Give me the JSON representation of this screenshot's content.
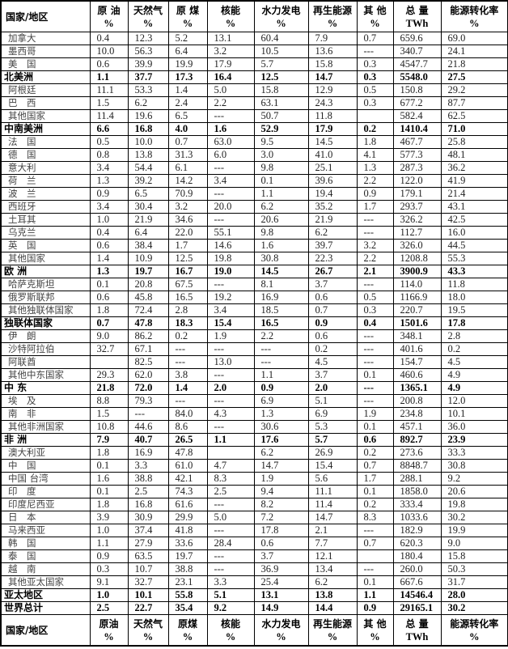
{
  "headers": [
    {
      "label": "国家/地区",
      "unit": ""
    },
    {
      "label": "原 油",
      "unit": "%"
    },
    {
      "label": "天然气",
      "unit": "%"
    },
    {
      "label": "原 煤",
      "unit": "%"
    },
    {
      "label": "核能",
      "unit": "%"
    },
    {
      "label": "水力发电",
      "unit": "%"
    },
    {
      "label": "再生能源",
      "unit": "%"
    },
    {
      "label": "其 他",
      "unit": "%"
    },
    {
      "label": "总 量",
      "unit": "TWh"
    },
    {
      "label": "能源转化率",
      "unit": "%"
    }
  ],
  "footer_headers": [
    {
      "label": "国家/地区",
      "unit": ""
    },
    {
      "label": "原油",
      "unit": "%"
    },
    {
      "label": "天然气",
      "unit": "%"
    },
    {
      "label": "原煤",
      "unit": "%"
    },
    {
      "label": "核能",
      "unit": "%"
    },
    {
      "label": "水力发电",
      "unit": "%"
    },
    {
      "label": "再生能源",
      "unit": "%"
    },
    {
      "label": "其 他",
      "unit": "%"
    },
    {
      "label": "总 量",
      "unit": "TWh"
    },
    {
      "label": "能源转化率",
      "unit": "%"
    }
  ],
  "rows": [
    {
      "name": "加拿大",
      "bold": false,
      "values": [
        "0.4",
        "12.3",
        "5.2",
        "13.1",
        "60.4",
        "7.9",
        "0.7",
        "659.6",
        "69.0"
      ]
    },
    {
      "name": "墨西哥",
      "bold": false,
      "values": [
        "10.0",
        "56.3",
        "6.4",
        "3.2",
        "10.5",
        "13.6",
        "---",
        "340.7",
        "24.1"
      ]
    },
    {
      "name": "美　国",
      "bold": false,
      "values": [
        "0.6",
        "39.9",
        "19.9",
        "17.9",
        "5.7",
        "15.8",
        "0.3",
        "4547.7",
        "21.8"
      ]
    },
    {
      "name": "北美洲",
      "bold": true,
      "values": [
        "1.1",
        "37.7",
        "17.3",
        "16.4",
        "12.5",
        "14.7",
        "0.3",
        "5548.0",
        "27.5"
      ]
    },
    {
      "name": "阿根廷",
      "bold": false,
      "values": [
        "11.1",
        "53.3",
        "1.4",
        "5.0",
        "15.8",
        "12.9",
        "0.5",
        "150.8",
        "29.2"
      ]
    },
    {
      "name": "巴　西",
      "bold": false,
      "values": [
        "1.5",
        "6.2",
        "2.4",
        "2.2",
        "63.1",
        "24.3",
        "0.3",
        "677.2",
        "87.7"
      ]
    },
    {
      "name": "其他国家",
      "bold": false,
      "values": [
        "11.4",
        "19.6",
        "6.5",
        "---",
        "50.7",
        "11.8",
        "",
        "582.4",
        "62.5"
      ]
    },
    {
      "name": "中南美洲",
      "bold": true,
      "values": [
        "6.6",
        "16.8",
        "4.0",
        "1.6",
        "52.9",
        "17.9",
        "0.2",
        "1410.4",
        "71.0"
      ]
    },
    {
      "name": "法　国",
      "bold": false,
      "values": [
        "0.5",
        "10.0",
        "0.7",
        "63.0",
        "9.5",
        "14.5",
        "1.8",
        "467.7",
        "25.8"
      ]
    },
    {
      "name": "德　国",
      "bold": false,
      "values": [
        "0.8",
        "13.8",
        "31.3",
        "6.0",
        "3.0",
        "41.0",
        "4.1",
        "577.3",
        "48.1"
      ]
    },
    {
      "name": "意大利",
      "bold": false,
      "values": [
        "3.4",
        "54.4",
        "6.1",
        "---",
        "9.8",
        "25.1",
        "1.3",
        "287.3",
        "36.2"
      ]
    },
    {
      "name": "荷　兰",
      "bold": false,
      "values": [
        "1.3",
        "39.2",
        "14.2",
        "3.4",
        "0.1",
        "39.6",
        "2.2",
        "122.0",
        "41.9"
      ]
    },
    {
      "name": "波　兰",
      "bold": false,
      "values": [
        "0.9",
        "6.5",
        "70.9",
        "---",
        "1.1",
        "19.4",
        "0.9",
        "179.1",
        "21.4"
      ]
    },
    {
      "name": "西班牙",
      "bold": false,
      "values": [
        "3.4",
        "30.4",
        "3.2",
        "20.0",
        "6.2",
        "35.2",
        "1.7",
        "293.7",
        "43.1"
      ]
    },
    {
      "name": "土耳其",
      "bold": false,
      "values": [
        "1.0",
        "21.9",
        "34.6",
        "---",
        "20.6",
        "21.9",
        "---",
        "326.2",
        "42.5"
      ]
    },
    {
      "name": "乌克兰",
      "bold": false,
      "values": [
        "0.4",
        "6.4",
        "22.0",
        "55.1",
        "9.8",
        "6.2",
        "---",
        "112.7",
        "16.0"
      ]
    },
    {
      "name": "英　国",
      "bold": false,
      "values": [
        "0.6",
        "38.4",
        "1.7",
        "14.6",
        "1.6",
        "39.7",
        "3.2",
        "326.0",
        "44.5"
      ]
    },
    {
      "name": "其他国家",
      "bold": false,
      "values": [
        "1.4",
        "10.9",
        "12.5",
        "19.8",
        "30.8",
        "22.3",
        "2.2",
        "1208.8",
        "55.3"
      ]
    },
    {
      "name": "欧 洲",
      "bold": true,
      "values": [
        "1.3",
        "19.7",
        "16.7",
        "19.0",
        "14.5",
        "26.7",
        "2.1",
        "3900.9",
        "43.3"
      ]
    },
    {
      "name": "哈萨克斯坦",
      "bold": false,
      "values": [
        "0.1",
        "20.8",
        "67.5",
        "---",
        "8.1",
        "3.7",
        "---",
        "114.0",
        "11.8"
      ]
    },
    {
      "name": "俄罗斯联邦",
      "bold": false,
      "values": [
        "0.6",
        "45.8",
        "16.5",
        "19.2",
        "16.9",
        "0.6",
        "0.5",
        "1166.9",
        "18.0"
      ]
    },
    {
      "name": "其他独联体国家",
      "bold": false,
      "values": [
        "1.8",
        "72.4",
        "2.8",
        "3.4",
        "18.5",
        "0.7",
        "0.3",
        "220.7",
        "19.5"
      ]
    },
    {
      "name": "独联体国家",
      "bold": true,
      "values": [
        "0.7",
        "47.8",
        "18.3",
        "15.4",
        "16.5",
        "0.9",
        "0.4",
        "1501.6",
        "17.8"
      ]
    },
    {
      "name": "伊　朗",
      "bold": false,
      "values": [
        "9.0",
        "86.2",
        "0.2",
        "1.9",
        "2.2",
        "0.6",
        "---",
        "348.1",
        "2.8"
      ]
    },
    {
      "name": "沙特阿拉伯",
      "bold": false,
      "values": [
        "32.7",
        "67.1",
        "---",
        "---",
        "---",
        "0.2",
        "---",
        "401.6",
        "0.2"
      ]
    },
    {
      "name": "阿联酋",
      "bold": false,
      "values": [
        "",
        "82.5",
        "---",
        "13.0",
        "---",
        "4.5",
        "---",
        "154.7",
        "4.5"
      ]
    },
    {
      "name": "其他中东国家",
      "bold": false,
      "values": [
        "29.3",
        "62.0",
        "3.8",
        "---",
        "1.1",
        "3.7",
        "0.1",
        "460.6",
        "4.9"
      ]
    },
    {
      "name": "中 东",
      "bold": true,
      "values": [
        "21.8",
        "72.0",
        "1.4",
        "2.0",
        "0.9",
        "2.0",
        "---",
        "1365.1",
        "4.9"
      ]
    },
    {
      "name": "埃　及",
      "bold": false,
      "values": [
        "8.8",
        "79.3",
        "---",
        "---",
        "6.9",
        "5.1",
        "---",
        "200.8",
        "12.0"
      ]
    },
    {
      "name": "南　非",
      "bold": false,
      "values": [
        "1.5",
        "---",
        "84.0",
        "4.3",
        "1.3",
        "6.9",
        "1.9",
        "234.8",
        "10.1"
      ]
    },
    {
      "name": "其他非洲国家",
      "bold": false,
      "values": [
        "10.8",
        "44.6",
        "8.6",
        "---",
        "30.6",
        "5.3",
        "0.1",
        "457.1",
        "36.0"
      ]
    },
    {
      "name": "非 洲",
      "bold": true,
      "values": [
        "7.9",
        "40.7",
        "26.5",
        "1.1",
        "17.6",
        "5.7",
        "0.6",
        "892.7",
        "23.9"
      ]
    },
    {
      "name": "澳大利亚",
      "bold": false,
      "values": [
        "1.8",
        "16.9",
        "47.8",
        "",
        "6.2",
        "26.9",
        "0.2",
        "273.6",
        "33.3"
      ]
    },
    {
      "name": "中　国",
      "bold": false,
      "values": [
        "0.1",
        "3.3",
        "61.0",
        "4.7",
        "14.7",
        "15.4",
        "0.7",
        "8848.7",
        "30.8"
      ]
    },
    {
      "name": "中国 台湾",
      "bold": false,
      "values": [
        "1.6",
        "38.8",
        "42.1",
        "8.3",
        "1.9",
        "5.6",
        "1.7",
        "288.1",
        "9.2"
      ]
    },
    {
      "name": "印　度",
      "bold": false,
      "values": [
        "0.1",
        "2.5",
        "74.3",
        "2.5",
        "9.4",
        "11.1",
        "0.1",
        "1858.0",
        "20.6"
      ]
    },
    {
      "name": "印度尼西亚",
      "bold": false,
      "values": [
        "1.8",
        "16.8",
        "61.6",
        "---",
        "8.2",
        "11.4",
        "0.2",
        "333.4",
        "19.8"
      ]
    },
    {
      "name": "日　本",
      "bold": false,
      "values": [
        "3.9",
        "30.9",
        "29.9",
        "5.0",
        "7.2",
        "14.7",
        "8.3",
        "1033.6",
        "30.2"
      ]
    },
    {
      "name": "马来西亚",
      "bold": false,
      "values": [
        "1.0",
        "37.4",
        "41.8",
        "---",
        "17.8",
        "2.1",
        "---",
        "182.9",
        "19.9"
      ]
    },
    {
      "name": "韩　国",
      "bold": false,
      "values": [
        "1.1",
        "27.9",
        "33.6",
        "28.4",
        "0.6",
        "7.7",
        "0.7",
        "620.3",
        "9.0"
      ]
    },
    {
      "name": "泰　国",
      "bold": false,
      "values": [
        "0.9",
        "63.5",
        "19.7",
        "---",
        "3.7",
        "12.1",
        "",
        "180.4",
        "15.8"
      ]
    },
    {
      "name": "越　南",
      "bold": false,
      "values": [
        "0.3",
        "10.7",
        "38.8",
        "---",
        "36.9",
        "13.4",
        "---",
        "260.0",
        "50.3"
      ]
    },
    {
      "name": "其他亚太国家",
      "bold": false,
      "values": [
        "9.1",
        "32.7",
        "23.1",
        "3.3",
        "25.4",
        "6.2",
        "0.1",
        "667.6",
        "31.7"
      ]
    },
    {
      "name": "亚太地区",
      "bold": true,
      "values": [
        "1.0",
        "10.1",
        "55.8",
        "5.1",
        "13.1",
        "13.8",
        "1.1",
        "14546.4",
        "28.0"
      ]
    },
    {
      "name": "世界总计",
      "bold": true,
      "values": [
        "2.5",
        "22.7",
        "35.4",
        "9.2",
        "14.9",
        "14.4",
        "0.9",
        "29165.1",
        "30.2"
      ]
    }
  ]
}
